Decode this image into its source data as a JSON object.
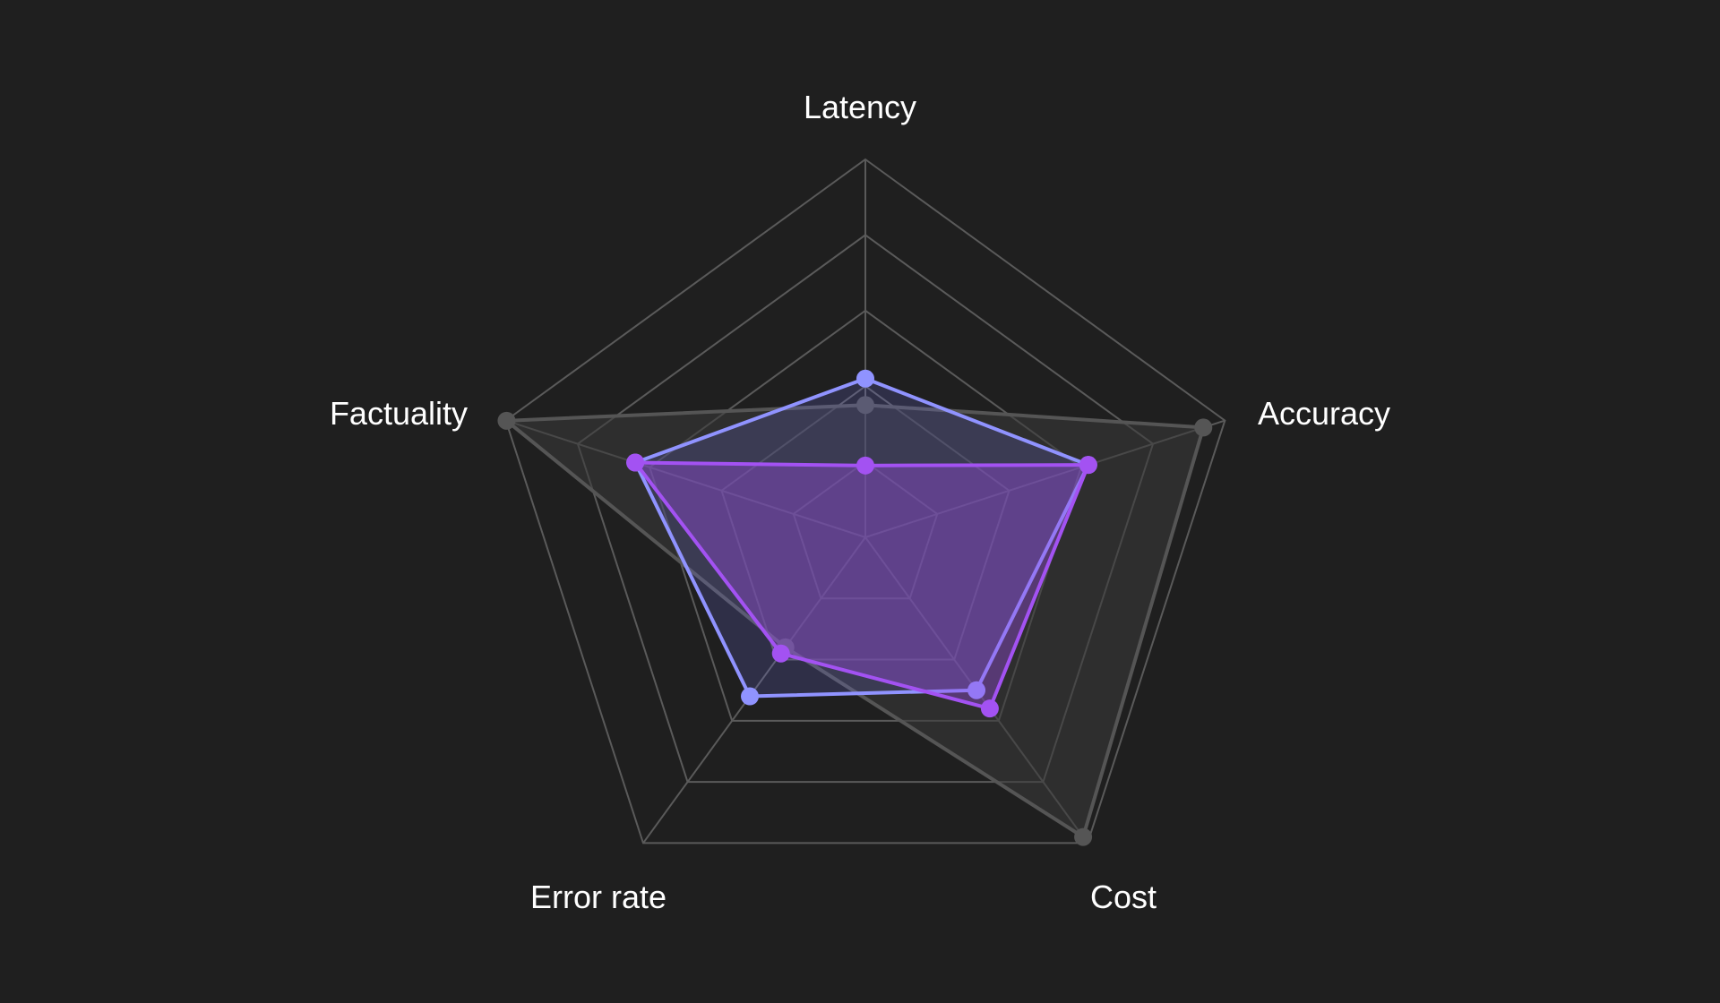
{
  "colors": {
    "background": "#1f1f1f",
    "grid": "#5a5a5a",
    "series_gray": "#555555",
    "series_blue": "#9093ff",
    "series_purple": "#a352f2"
  },
  "chart_data": {
    "type": "radar",
    "axes": [
      "Latency",
      "Accuracy",
      "Cost",
      "Error rate",
      "Factuality"
    ],
    "rlim": [
      0,
      5
    ],
    "grid_levels": [
      1,
      2,
      3,
      4,
      5
    ],
    "grid": true,
    "series": [
      {
        "values": [
          1.75,
          4.7,
          4.9,
          1.8,
          4.99
        ],
        "color": "#555555",
        "fill": "#3a3a3a",
        "fill_opacity": 0.55
      },
      {
        "values": [
          2.1,
          3.1,
          2.5,
          2.6,
          3.2
        ],
        "color": "#9093ff",
        "fill": "#7a7cff",
        "fill_opacity": 0.18
      },
      {
        "values": [
          0.95,
          3.1,
          2.8,
          1.9,
          3.2
        ],
        "color": "#a352f2",
        "fill": "#9b4de6",
        "fill_opacity": 0.38
      }
    ]
  }
}
